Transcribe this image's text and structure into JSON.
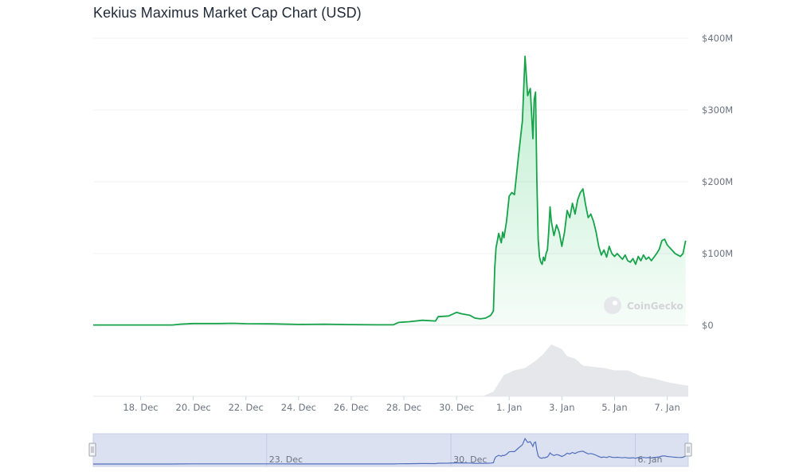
{
  "title": "Kekius Maximus Market Cap Chart (USD)",
  "watermark": "CoinGecko",
  "colors": {
    "line": "#16a34a",
    "fill": "#22c55e",
    "volume": "#e5e7eb",
    "navigator_line": "#4f6ebd",
    "navigator_bg": "#dbe1f1"
  },
  "chart_data": {
    "type": "area",
    "title": "Kekius Maximus Market Cap Chart (USD)",
    "y_unit": "USD (millions)",
    "ylim": [
      0,
      400
    ],
    "y_ticks": [
      "$0",
      "$100M",
      "$200M",
      "$300M",
      "$400M"
    ],
    "y_tick_values": [
      0,
      100,
      200,
      300,
      400
    ],
    "x_ticks": [
      "18. Dec",
      "20. Dec",
      "22. Dec",
      "24. Dec",
      "26. Dec",
      "28. Dec",
      "30. Dec",
      "1. Jan",
      "3. Jan",
      "5. Jan",
      "7. Jan"
    ],
    "x_tick_values": [
      18,
      20,
      22,
      24,
      26,
      28,
      30,
      32,
      34,
      36,
      38
    ],
    "xlim": [
      16.2,
      38.8
    ],
    "grid": true,
    "series": [
      {
        "type": "area",
        "x": [
          16.2,
          17.5,
          18.5,
          19.2,
          19.5,
          20,
          21,
          21.5,
          22,
          23,
          24,
          25,
          26,
          27,
          27.6,
          27.8,
          28.2,
          28.7,
          29.2,
          29.3,
          29.7,
          30,
          30.2,
          30.5,
          30.7,
          30.9,
          31.1,
          31.3,
          31.4,
          31.45,
          31.5,
          31.55,
          31.6,
          31.7,
          31.75,
          31.8,
          31.9,
          32,
          32.1,
          32.2,
          32.35,
          32.5,
          32.6,
          32.7,
          32.8,
          32.9,
          32.95,
          33.0,
          33.05,
          33.1,
          33.15,
          33.2,
          33.25,
          33.3,
          33.35,
          33.4,
          33.45,
          33.5,
          33.55,
          33.6,
          33.7,
          33.8,
          33.9,
          34.0,
          34.1,
          34.2,
          34.3,
          34.4,
          34.5,
          34.6,
          34.7,
          34.8,
          34.9,
          35.0,
          35.1,
          35.2,
          35.3,
          35.4,
          35.5,
          35.6,
          35.7,
          35.8,
          35.9,
          36.0,
          36.1,
          36.2,
          36.3,
          36.4,
          36.5,
          36.6,
          36.7,
          36.8,
          36.9,
          37.0,
          37.1,
          37.2,
          37.3,
          37.4,
          37.5,
          37.6,
          37.7,
          37.8,
          37.9,
          38.0,
          38.1,
          38.2,
          38.3,
          38.4,
          38.5,
          38.6,
          38.7
        ],
        "y": [
          0.5,
          0.5,
          0.5,
          0.5,
          1.5,
          2.5,
          2.5,
          2.8,
          2.2,
          2.0,
          1.2,
          1.5,
          1.0,
          0.7,
          0.8,
          4,
          5,
          7,
          6,
          12,
          13,
          18,
          16,
          14,
          10,
          9,
          10,
          14,
          20,
          80,
          108,
          118,
          128,
          115,
          130,
          122,
          145,
          180,
          185,
          182,
          235,
          285,
          375,
          320,
          330,
          260,
          315,
          325,
          205,
          120,
          95,
          88,
          85,
          95,
          90,
          100,
          105,
          130,
          165,
          145,
          125,
          140,
          130,
          110,
          130,
          160,
          150,
          170,
          155,
          175,
          185,
          190,
          168,
          150,
          155,
          145,
          130,
          110,
          98,
          105,
          95,
          110,
          100,
          96,
          100,
          96,
          92,
          98,
          90,
          88,
          93,
          85,
          96,
          90,
          98,
          92,
          95,
          90,
          95,
          100,
          106,
          118,
          120,
          112,
          108,
          104,
          100,
          98,
          96,
          100,
          118
        ]
      },
      {
        "type": "volume",
        "x": [
          16.2,
          31.0,
          31.4,
          31.8,
          32.2,
          32.6,
          33.0,
          33.3,
          33.6,
          33.8,
          34.0,
          34.2,
          34.5,
          34.8,
          35.2,
          35.6,
          36.0,
          36.5,
          37.0,
          37.5,
          38.0,
          38.5,
          38.8
        ],
        "y": [
          0,
          0,
          4,
          18,
          22,
          24,
          30,
          36,
          44,
          42,
          40,
          34,
          32,
          26,
          25,
          24,
          22,
          22,
          17,
          15,
          12,
          10,
          9
        ]
      }
    ]
  },
  "navigator": {
    "labels": [
      "23. Dec",
      "30. Dec",
      "6. Jan"
    ],
    "label_values": [
      23,
      30,
      37
    ]
  }
}
